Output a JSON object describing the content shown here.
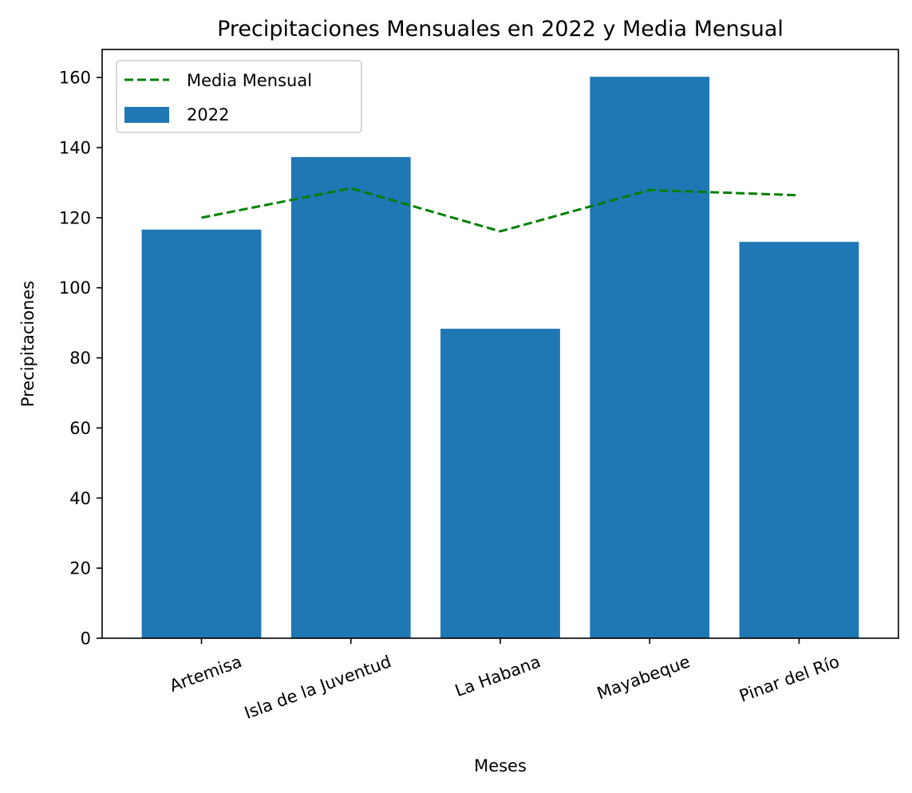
{
  "chart_data": {
    "type": "bar",
    "title": "Precipitaciones Mensuales en 2022 y Media Mensual",
    "xlabel": "Meses",
    "ylabel": "Precipitaciones",
    "categories": [
      "Artemisa",
      "Isla de la Juventud",
      "La Habana",
      "Mayabeque",
      "Pinar del Río"
    ],
    "series": [
      {
        "name": "2022",
        "kind": "bar",
        "color": "#1f77b4",
        "values": [
          116.6,
          137.3,
          88.3,
          160.2,
          113.1
        ]
      },
      {
        "name": "Media Mensual",
        "kind": "line",
        "style": "dashed",
        "color": "#008000",
        "values": [
          120.0,
          128.4,
          116.1,
          127.9,
          126.4
        ]
      }
    ],
    "ylim": [
      0,
      168
    ],
    "yticks": [
      0,
      20,
      40,
      60,
      80,
      100,
      120,
      140,
      160
    ],
    "grid": false,
    "legend_position": "upper left"
  }
}
